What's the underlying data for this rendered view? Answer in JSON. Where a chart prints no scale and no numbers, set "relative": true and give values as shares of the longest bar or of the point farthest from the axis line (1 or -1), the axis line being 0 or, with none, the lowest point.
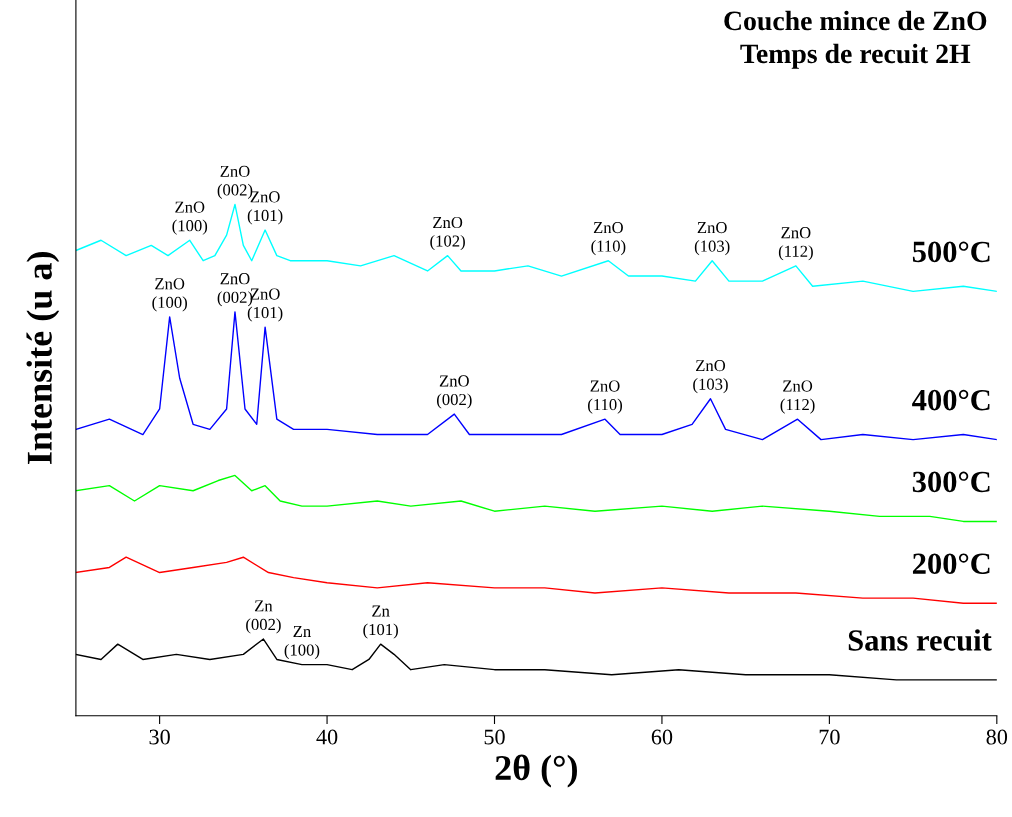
{
  "chart_data": {
    "type": "line",
    "title": "Couche mince de ZnO\nTemps de recuit 2H",
    "xlabel": "2θ (°)",
    "ylabel": "Intensité (u a)",
    "relative": true,
    "xlim": [
      25,
      80
    ],
    "xticks": [
      30,
      40,
      50,
      60,
      70,
      80
    ],
    "grid": false,
    "legend": false,
    "marker": "none",
    "line_style": "solid",
    "series": [
      {
        "name": "500°C",
        "color": "#00ffff",
        "x": [
          25,
          26.5,
          28,
          29.5,
          30.5,
          31.8,
          32.6,
          33.3,
          34.0,
          34.5,
          35.0,
          35.5,
          36.3,
          37.0,
          37.8,
          40,
          42,
          44,
          46,
          47.2,
          48,
          50,
          52,
          54,
          56.8,
          58,
          60,
          62,
          63,
          64,
          66,
          68,
          69,
          72,
          75,
          78,
          80
        ],
        "values": [
          0.91,
          0.93,
          0.9,
          0.92,
          0.9,
          0.93,
          0.89,
          0.9,
          0.94,
          1,
          0.92,
          0.89,
          0.95,
          0.9,
          0.89,
          0.89,
          0.88,
          0.9,
          0.87,
          0.9,
          0.87,
          0.87,
          0.88,
          0.86,
          0.89,
          0.86,
          0.86,
          0.85,
          0.89,
          0.85,
          0.85,
          0.88,
          0.84,
          0.85,
          0.83,
          0.84,
          0.83
        ]
      },
      {
        "name": "400°C",
        "color": "#0000ff",
        "x": [
          25,
          27,
          29,
          30.0,
          30.6,
          31.2,
          32,
          33,
          34.0,
          34.5,
          35.1,
          35.8,
          36.3,
          37.0,
          38,
          40,
          43,
          46,
          47.6,
          48.5,
          51,
          54,
          56.6,
          57.5,
          60,
          61.8,
          62.9,
          63.8,
          66,
          68.1,
          69.5,
          72,
          75,
          78,
          80
        ],
        "values": [
          0.56,
          0.58,
          0.55,
          0.6,
          0.78,
          0.66,
          0.57,
          0.56,
          0.6,
          0.79,
          0.6,
          0.57,
          0.76,
          0.58,
          0.56,
          0.56,
          0.55,
          0.55,
          0.59,
          0.55,
          0.55,
          0.55,
          0.58,
          0.55,
          0.55,
          0.57,
          0.62,
          0.56,
          0.54,
          0.58,
          0.54,
          0.55,
          0.54,
          0.55,
          0.54
        ]
      },
      {
        "name": "300°C",
        "color": "#00ff00",
        "x": [
          25,
          27,
          28.5,
          30,
          32,
          33.5,
          34.5,
          35.5,
          36.3,
          37.2,
          38.5,
          40,
          43,
          45,
          48,
          50,
          53,
          56,
          60,
          63,
          66,
          70,
          73,
          76,
          78,
          80
        ],
        "values": [
          0.44,
          0.45,
          0.42,
          0.45,
          0.44,
          0.46,
          0.47,
          0.44,
          0.45,
          0.42,
          0.41,
          0.41,
          0.42,
          0.41,
          0.42,
          0.4,
          0.41,
          0.4,
          0.41,
          0.4,
          0.41,
          0.4,
          0.39,
          0.39,
          0.38,
          0.38
        ]
      },
      {
        "name": "200°C",
        "color": "#ff0000",
        "x": [
          25,
          27,
          28,
          30,
          32,
          34,
          35,
          36.5,
          38,
          40,
          43,
          46,
          50,
          53,
          56,
          60,
          64,
          68,
          72,
          75,
          78,
          80
        ],
        "values": [
          0.28,
          0.29,
          0.31,
          0.28,
          0.29,
          0.3,
          0.31,
          0.28,
          0.27,
          0.26,
          0.25,
          0.26,
          0.25,
          0.25,
          0.24,
          0.25,
          0.24,
          0.24,
          0.23,
          0.23,
          0.22,
          0.22
        ]
      },
      {
        "name": "Sans recuit",
        "color": "#000000",
        "x": [
          25,
          26.5,
          27.5,
          29,
          31,
          33,
          35,
          36.2,
          37,
          38.5,
          40,
          41.5,
          42.5,
          43.2,
          44,
          45,
          47,
          50,
          53,
          57,
          61,
          65,
          70,
          74,
          77,
          80
        ],
        "values": [
          0.12,
          0.11,
          0.14,
          0.11,
          0.12,
          0.11,
          0.12,
          0.15,
          0.11,
          0.1,
          0.1,
          0.09,
          0.11,
          0.14,
          0.12,
          0.09,
          0.1,
          0.09,
          0.09,
          0.08,
          0.09,
          0.08,
          0.08,
          0.07,
          0.07,
          0.07
        ]
      }
    ],
    "annotations": [
      {
        "text": "ZnO\n(100)",
        "x": 31.8,
        "y": 0.93
      },
      {
        "text": "ZnO\n(002)",
        "x": 34.5,
        "y": 1
      },
      {
        "text": "ZnO\n(101)",
        "x": 36.3,
        "y": 0.95
      },
      {
        "text": "ZnO\n(102)",
        "x": 47.2,
        "y": 0.9
      },
      {
        "text": "ZnO\n(110)",
        "x": 56.8,
        "y": 0.89
      },
      {
        "text": "ZnO\n(103)",
        "x": 63,
        "y": 0.89
      },
      {
        "text": "ZnO\n(112)",
        "x": 68,
        "y": 0.88
      },
      {
        "text": "ZnO\n(100)",
        "x": 30.6,
        "y": 0.78
      },
      {
        "text": "ZnO\n(002)",
        "x": 34.5,
        "y": 0.79
      },
      {
        "text": "ZnO\n(101)",
        "x": 36.3,
        "y": 0.76
      },
      {
        "text": "ZnO\n(002)",
        "x": 47.6,
        "y": 0.59
      },
      {
        "text": "ZnO\n(110)",
        "x": 56.6,
        "y": 0.58
      },
      {
        "text": "ZnO\n(103)",
        "x": 62.9,
        "y": 0.62
      },
      {
        "text": "ZnO\n(112)",
        "x": 68.1,
        "y": 0.58
      },
      {
        "text": "Zn\n(002)",
        "x": 36.2,
        "y": 0.15
      },
      {
        "text": "Zn\n(100)",
        "x": 38.5,
        "y": 0.1
      },
      {
        "text": "Zn\n(101)",
        "x": 43.2,
        "y": 0.14
      }
    ]
  }
}
